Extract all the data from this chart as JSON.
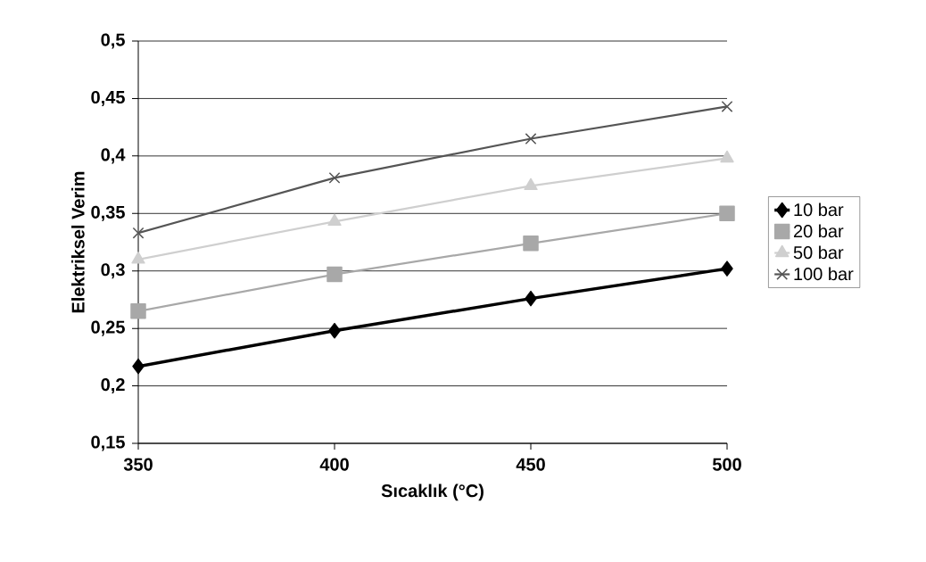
{
  "chart_data": {
    "type": "line",
    "xlabel": "Sıcaklık (°C)",
    "ylabel": "Elektriksel Verim",
    "x": [
      350,
      400,
      450,
      500
    ],
    "series": [
      {
        "name": "10 bar",
        "color": "#000000",
        "marker": "diamond",
        "values": [
          0.217,
          0.248,
          0.276,
          0.302
        ]
      },
      {
        "name": "20 bar",
        "color": "#a8a8a8",
        "marker": "square",
        "values": [
          0.265,
          0.297,
          0.324,
          0.35
        ]
      },
      {
        "name": "50 bar",
        "color": "#cfcfcf",
        "marker": "triangle",
        "values": [
          0.31,
          0.343,
          0.374,
          0.398
        ]
      },
      {
        "name": "100 bar",
        "color": "#555555",
        "marker": "cross",
        "values": [
          0.333,
          0.381,
          0.415,
          0.443
        ]
      }
    ],
    "xlim": [
      350,
      500
    ],
    "xticks": [
      350,
      400,
      450,
      500
    ],
    "ylim": [
      0.15,
      0.5
    ],
    "yticks": [
      {
        "value": 0.15,
        "label": "0,15"
      },
      {
        "value": 0.2,
        "label": "0,2"
      },
      {
        "value": 0.25,
        "label": "0,25"
      },
      {
        "value": 0.3,
        "label": "0,3"
      },
      {
        "value": 0.35,
        "label": "0,35"
      },
      {
        "value": 0.4,
        "label": "0,4"
      },
      {
        "value": 0.45,
        "label": "0,45"
      },
      {
        "value": 0.5,
        "label": "0,5"
      }
    ],
    "grid": "y",
    "legend": "right",
    "line_style": "solid"
  }
}
